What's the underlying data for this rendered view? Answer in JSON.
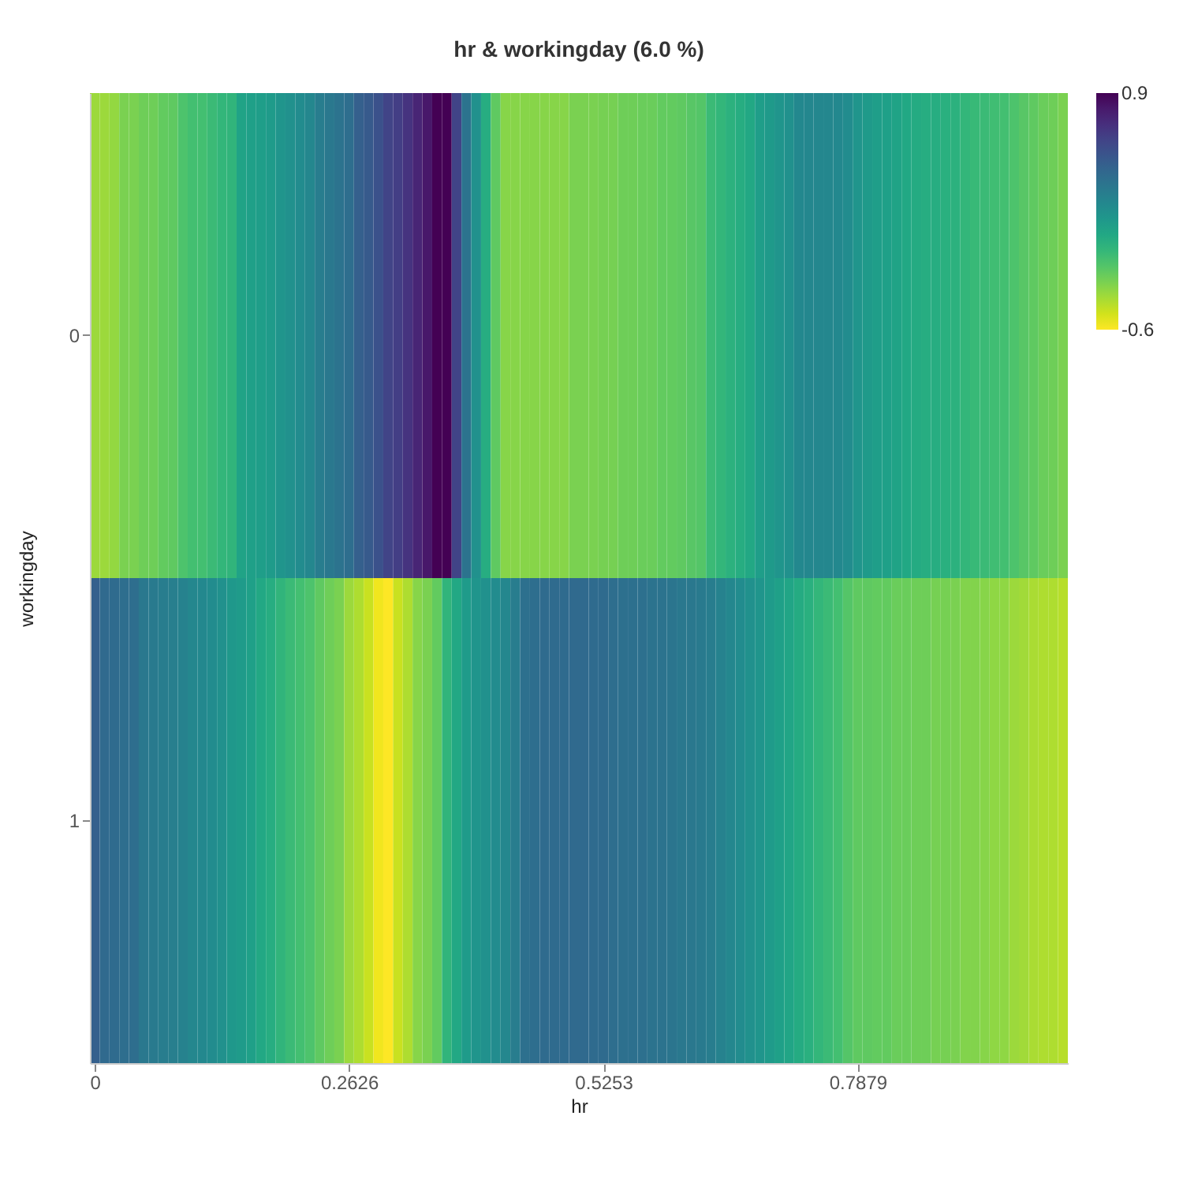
{
  "chart_data": {
    "type": "heatmap",
    "title": "hr & workingday (6.0 %)",
    "xlabel": "hr",
    "ylabel": "workingday",
    "x": [
      0,
      0.0101,
      0.0202,
      0.0303,
      0.0404,
      0.0505,
      0.0606,
      0.0707,
      0.0808,
      0.0909,
      0.101,
      0.1111,
      0.1212,
      0.1313,
      0.1414,
      0.1515,
      0.1616,
      0.1717,
      0.1818,
      0.1919,
      0.202,
      0.2121,
      0.2222,
      0.2323,
      0.2424,
      0.2525,
      0.2626,
      0.2727,
      0.2828,
      0.2929,
      0.303,
      0.3131,
      0.3232,
      0.3333,
      0.3434,
      0.3535,
      0.3636,
      0.3737,
      0.3838,
      0.3939,
      0.404,
      0.4141,
      0.4242,
      0.4343,
      0.4444,
      0.4545,
      0.4646,
      0.4747,
      0.4848,
      0.4949,
      0.5051,
      0.5152,
      0.5253,
      0.5354,
      0.5455,
      0.5556,
      0.5657,
      0.5758,
      0.5859,
      0.596,
      0.6061,
      0.6162,
      0.6263,
      0.6364,
      0.6465,
      0.6566,
      0.6667,
      0.6768,
      0.6869,
      0.697,
      0.7071,
      0.7172,
      0.7273,
      0.7374,
      0.7475,
      0.7576,
      0.7677,
      0.7778,
      0.7879,
      0.798,
      0.8081,
      0.8182,
      0.8283,
      0.8384,
      0.8485,
      0.8586,
      0.8687,
      0.8788,
      0.8889,
      0.899,
      0.9091,
      0.9192,
      0.9293,
      0.9394,
      0.9495,
      0.9596,
      0.9697,
      0.9798,
      0.9899,
      1
    ],
    "y_categories": [
      "0",
      "1"
    ],
    "cells": [
      [
        -0.38,
        -0.38,
        -0.36,
        -0.3,
        -0.3,
        -0.27,
        -0.27,
        -0.24,
        -0.23,
        -0.18,
        -0.15,
        -0.15,
        -0.12,
        -0.09,
        -0.08,
        0.03,
        0.05,
        0.06,
        0.08,
        0.12,
        0.15,
        0.18,
        0.21,
        0.27,
        0.3,
        0.33,
        0.36,
        0.45,
        0.48,
        0.53,
        0.6,
        0.63,
        0.68,
        0.75,
        0.81,
        0.9,
        0.9,
        0.6,
        0.33,
        0.15,
        -0.03,
        -0.23,
        -0.33,
        -0.33,
        -0.33,
        -0.33,
        -0.33,
        -0.33,
        -0.33,
        -0.3,
        -0.3,
        -0.3,
        -0.29,
        -0.29,
        -0.27,
        -0.27,
        -0.26,
        -0.26,
        -0.24,
        -0.24,
        -0.23,
        -0.21,
        -0.2,
        -0.12,
        -0.09,
        -0.06,
        -0.03,
        0,
        0.06,
        0.09,
        0.12,
        0.15,
        0.2,
        0.21,
        0.21,
        0.21,
        0.2,
        0.18,
        0.12,
        0.09,
        0.06,
        0.05,
        0.03,
        0,
        -0.02,
        -0.03,
        -0.03,
        -0.05,
        -0.06,
        -0.09,
        -0.11,
        -0.12,
        -0.14,
        -0.15,
        -0.18,
        -0.21,
        -0.23,
        -0.26,
        -0.27,
        -0.3
      ],
      [
        0.45,
        0.39,
        0.38,
        0.36,
        0.36,
        0.3,
        0.29,
        0.27,
        0.26,
        0.24,
        0.21,
        0.2,
        0.18,
        0.15,
        0.1,
        0.08,
        0.05,
        0,
        -0.03,
        -0.08,
        -0.12,
        -0.15,
        -0.18,
        -0.23,
        -0.27,
        -0.3,
        -0.38,
        -0.42,
        -0.48,
        -0.57,
        -0.6,
        -0.48,
        -0.42,
        -0.33,
        -0.3,
        -0.24,
        -0.08,
        0,
        0.08,
        0.12,
        0.15,
        0.18,
        0.21,
        0.27,
        0.35,
        0.36,
        0.38,
        0.38,
        0.38,
        0.39,
        0.39,
        0.38,
        0.38,
        0.36,
        0.35,
        0.35,
        0.35,
        0.33,
        0.33,
        0.32,
        0.3,
        0.3,
        0.29,
        0.27,
        0.24,
        0.21,
        0.18,
        0.15,
        0.12,
        0.08,
        0.05,
        0.02,
        -0.02,
        -0.05,
        -0.09,
        -0.12,
        -0.15,
        -0.2,
        -0.23,
        -0.23,
        -0.24,
        -0.24,
        -0.26,
        -0.26,
        -0.27,
        -0.27,
        -0.29,
        -0.29,
        -0.3,
        -0.32,
        -0.32,
        -0.33,
        -0.35,
        -0.35,
        -0.38,
        -0.39,
        -0.41,
        -0.42,
        -0.42,
        -0.44
      ]
    ],
    "xlim": [
      -0.00505,
      1.00505
    ],
    "xticks": [
      0,
      0.2626,
      0.5253,
      0.7879
    ],
    "clim": [
      -0.6,
      0.9
    ],
    "cticks": [
      -0.6,
      0.9
    ]
  }
}
